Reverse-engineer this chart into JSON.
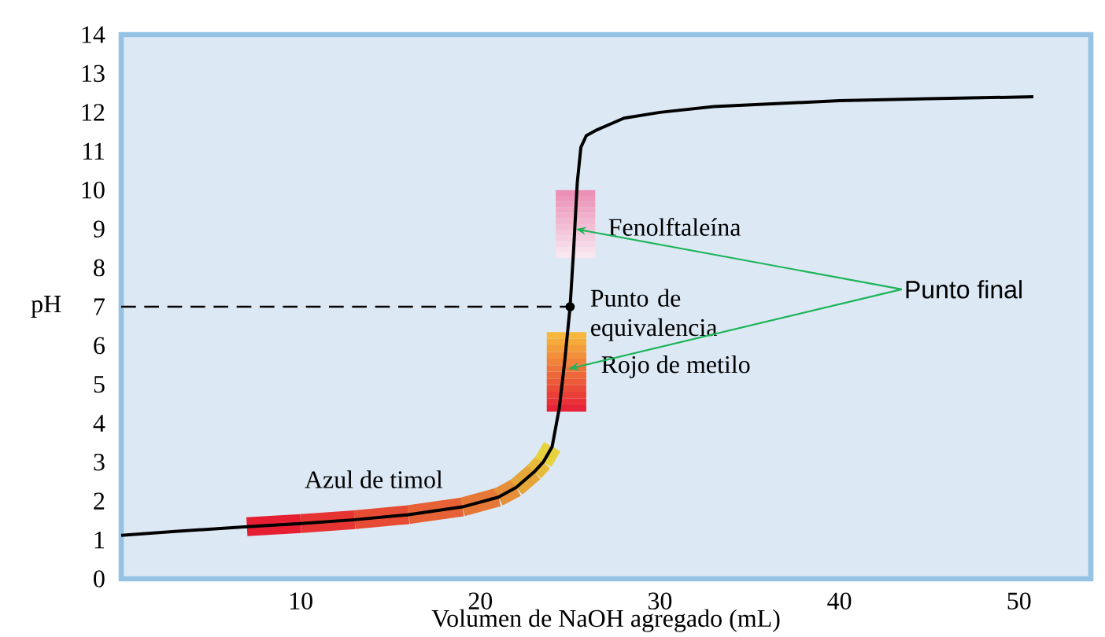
{
  "chart_data": {
    "type": "line",
    "xlabel": "Volumen de NaOH agregado (mL)",
    "ylabel": "pH",
    "x": [
      0,
      3,
      7,
      10,
      13,
      16,
      19,
      21,
      22,
      23,
      23.5,
      24,
      24.4,
      24.7,
      25,
      25.2,
      25.4,
      25.6,
      25.9,
      26.5,
      28,
      30,
      33,
      40,
      45,
      50.8
    ],
    "series": [
      {
        "color": "#000000",
        "values": [
          1.12,
          1.22,
          1.34,
          1.42,
          1.52,
          1.65,
          1.85,
          2.1,
          2.35,
          2.75,
          3.0,
          3.4,
          4.4,
          5.6,
          7.0,
          8.5,
          10.2,
          11.1,
          11.4,
          11.55,
          11.85,
          12.0,
          12.15,
          12.3,
          12.35,
          12.4
        ]
      }
    ],
    "xlim": [
      0,
      54
    ],
    "ylim": [
      0,
      14
    ],
    "xticks": [
      10,
      20,
      30,
      40,
      50
    ],
    "yticks": [
      0,
      1,
      2,
      3,
      4,
      5,
      6,
      7,
      8,
      9,
      10,
      11,
      12,
      13,
      14
    ],
    "marker": "none",
    "line_style": "solid",
    "ref_lines": [
      {
        "axis": "y",
        "value": 7,
        "line_style": "dashed",
        "color": "#000000"
      }
    ],
    "annotations": [
      {
        "text": "Azul de timol",
        "x": 15,
        "y": 1.6
      },
      {
        "text": "Fenolftaleína",
        "x": 25.3,
        "y": 9
      },
      {
        "text": "Punto de equivalencia",
        "x": 25,
        "y": 7
      },
      {
        "text": "Rojo de metilo",
        "x": 24.9,
        "y": 5.4
      },
      {
        "text": "Punto final",
        "x": 25.3,
        "y": 9
      }
    ]
  }
}
